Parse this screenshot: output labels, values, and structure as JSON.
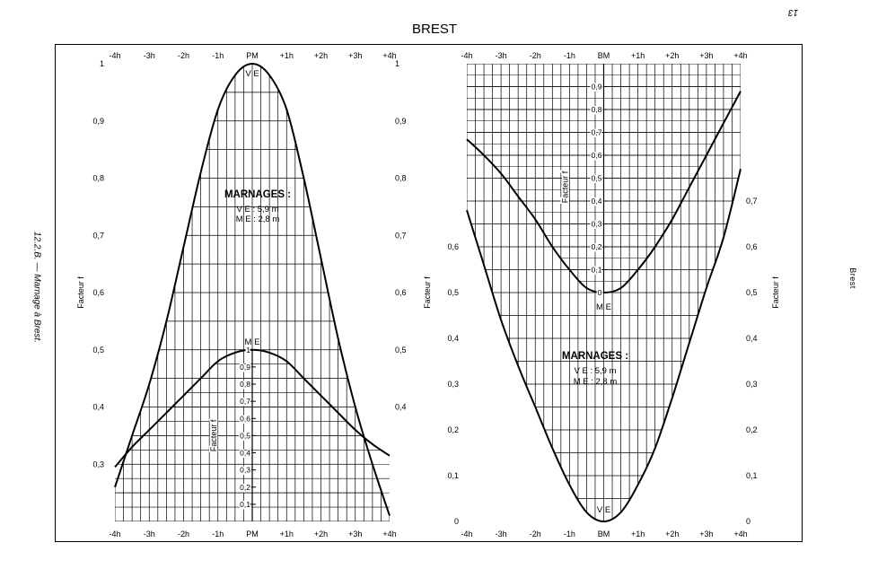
{
  "page": {
    "title": "BREST",
    "page_number": "13",
    "side_caption": "12.2.B. — Marnage à Brest.",
    "running_head": "Brest"
  },
  "chart_data": [
    {
      "id": "pm",
      "type": "line",
      "panel": "left",
      "xlabel": "",
      "x_ticks": [
        "-4h",
        "-3h",
        "-2h",
        "-1h",
        "PM",
        "+1h",
        "+2h",
        "+3h",
        "+4h"
      ],
      "x_values": [
        -4,
        -3,
        -2,
        -1,
        0,
        1,
        2,
        3,
        4
      ],
      "xlim": [
        -4,
        4
      ],
      "ylabel": "Facteur f",
      "ylim": [
        0.2,
        1.0
      ],
      "y_ticks": [
        1,
        0.9,
        0.8,
        0.7,
        0.6,
        0.5,
        0.4,
        0.3
      ],
      "y_tick_labels": [
        "1",
        "0,9",
        "0,8",
        "0,7",
        "0,6",
        "0,5",
        "0,4",
        "0,3"
      ],
      "y_ticks_right": [
        1,
        0.9,
        0.8,
        0.7,
        0.6,
        0.5,
        0.4
      ],
      "y_tick_labels_right": [
        "1",
        "0,9",
        "0,8",
        "0,7",
        "0,6",
        "0,5",
        "0,4"
      ],
      "series": [
        {
          "name": "VE",
          "x": [
            -4,
            -3.5,
            -3,
            -2.5,
            -2,
            -1.5,
            -1,
            -0.5,
            0,
            0.5,
            1,
            1.5,
            2,
            2.5,
            3,
            3.5,
            4
          ],
          "y": [
            0.26,
            0.35,
            0.44,
            0.55,
            0.68,
            0.81,
            0.92,
            0.98,
            1.0,
            0.98,
            0.92,
            0.8,
            0.66,
            0.52,
            0.4,
            0.3,
            0.21
          ]
        },
        {
          "name": "ME",
          "x": [
            -4,
            -3.5,
            -3,
            -2.5,
            -2,
            -1.5,
            -1,
            -0.5,
            0,
            0.5,
            1,
            1.5,
            2,
            2.5,
            3,
            3.5,
            4
          ],
          "y": [
            0.295,
            0.33,
            0.36,
            0.39,
            0.42,
            0.45,
            0.48,
            0.495,
            0.5,
            0.495,
            0.48,
            0.45,
            0.42,
            0.39,
            0.36,
            0.335,
            0.315
          ],
          "hatched_below": true
        }
      ],
      "inner_axis_label": "Facteur f",
      "inner_axis_ticks": [
        1,
        0.9,
        0.8,
        0.7,
        0.6,
        0.5,
        0.4,
        0.3,
        0.2,
        0.1
      ],
      "inner_axis_tick_labels": [
        "1",
        "0,9",
        "0,8",
        "0,7",
        "0,6",
        "0,5",
        "0,4",
        "0,3",
        "0,2",
        "0,1"
      ],
      "annotations": {
        "marnages_title": "MARNAGES :",
        "ve_line": "V E : 5,9 m",
        "me_line": "M E : 2,8 m",
        "ve_peak": "V E",
        "me_peak": "M E"
      },
      "grid": true
    },
    {
      "id": "bm",
      "type": "line",
      "panel": "right",
      "xlabel": "",
      "x_ticks": [
        "-4h",
        "-3h",
        "-2h",
        "-1h",
        "BM",
        "+1h",
        "+2h",
        "+3h",
        "+4h"
      ],
      "x_values": [
        -4,
        -3,
        -2,
        -1,
        0,
        1,
        2,
        3,
        4
      ],
      "xlim": [
        -4,
        4
      ],
      "ylabel": "Facteur f",
      "ylim": [
        0,
        1.0
      ],
      "y_ticks": [
        0.6,
        0.5,
        0.4,
        0.3,
        0.2,
        0.1,
        0
      ],
      "y_tick_labels": [
        "0,6",
        "0,5",
        "0,4",
        "0,3",
        "0,2",
        "0,1",
        "0"
      ],
      "y_ticks_right": [
        0.7,
        0.6,
        0.5,
        0.4,
        0.3,
        0.2,
        0.1,
        0
      ],
      "y_tick_labels_right": [
        "0,7",
        "0,6",
        "0,5",
        "0,4",
        "0,3",
        "0,2",
        "0,1",
        "0"
      ],
      "series": [
        {
          "name": "VE",
          "x": [
            -4,
            -3.5,
            -3,
            -2.5,
            -2,
            -1.5,
            -1,
            -0.5,
            0,
            0.5,
            1,
            1.5,
            2,
            2.5,
            3,
            3.5,
            4
          ],
          "y": [
            0.68,
            0.56,
            0.44,
            0.34,
            0.25,
            0.16,
            0.08,
            0.02,
            0.0,
            0.02,
            0.08,
            0.16,
            0.27,
            0.39,
            0.51,
            0.62,
            0.77
          ]
        },
        {
          "name": "ME",
          "x": [
            -4,
            -3.5,
            -3,
            -2.5,
            -2,
            -1.5,
            -1,
            -0.5,
            0,
            0.5,
            1,
            1.5,
            2,
            2.5,
            3,
            3.5,
            4
          ],
          "y": [
            0.835,
            0.8,
            0.76,
            0.71,
            0.66,
            0.6,
            0.55,
            0.51,
            0.5,
            0.51,
            0.55,
            0.6,
            0.66,
            0.73,
            0.8,
            0.87,
            0.94
          ],
          "hatched_above": true
        }
      ],
      "inner_axis_label": "Facteur f",
      "inner_axis_ticks": [
        0.9,
        0.8,
        0.7,
        0.6,
        0.5,
        0.4,
        0.3,
        0.2,
        0.1,
        0
      ],
      "inner_axis_tick_labels": [
        "0,9",
        "0,8",
        "0,7",
        "0,6",
        "0,5",
        "0,4",
        "0,3",
        "0,2",
        "0,1",
        "0"
      ],
      "annotations": {
        "marnages_title": "MARNAGES :",
        "ve_line": "V E : 5,9 m",
        "me_line": "M E : 2,8 m",
        "ve_peak": "V E",
        "me_peak": "M E"
      },
      "grid": true
    }
  ]
}
